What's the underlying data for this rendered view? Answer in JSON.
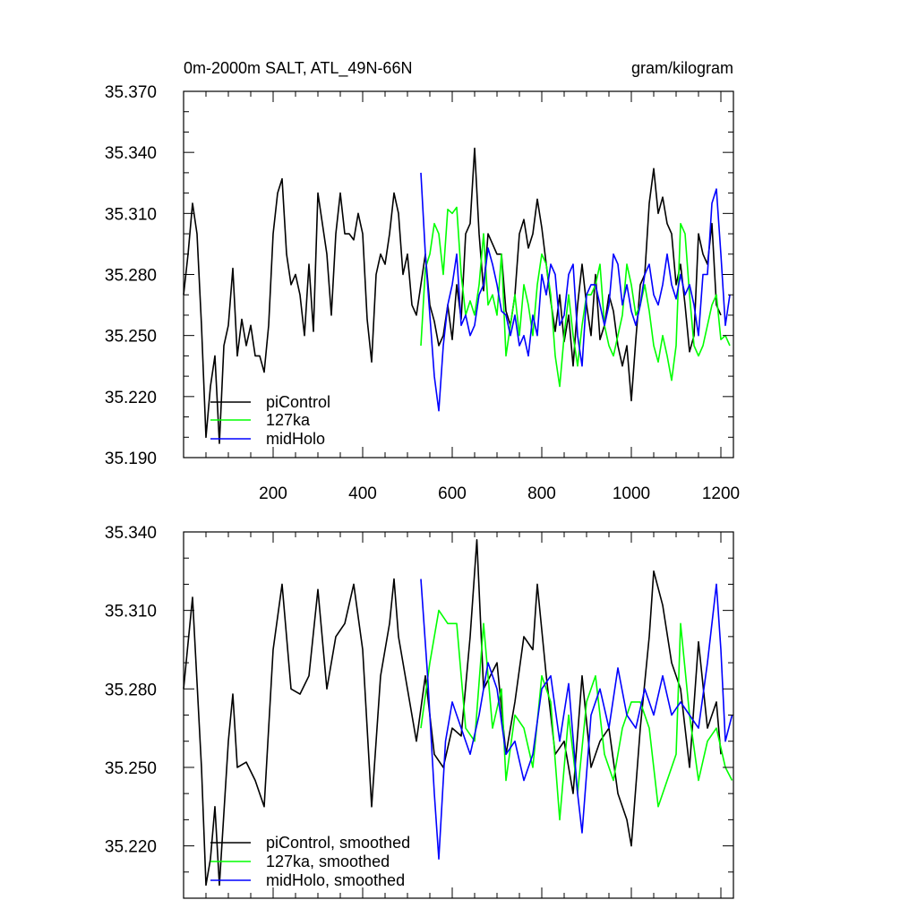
{
  "chart_data": [
    {
      "type": "line",
      "title_left": "0m-2000m SALT, ATL_49N-66N",
      "title_right": "gram/kilogram",
      "xlim": [
        0,
        1228
      ],
      "ylim": [
        35.19,
        35.37
      ],
      "xticks": [
        200,
        400,
        600,
        800,
        1000,
        1200
      ],
      "xtick_labels": [
        "200",
        "400",
        "600",
        "800",
        "1000",
        "1200"
      ],
      "yticks": [
        35.19,
        35.22,
        35.25,
        35.28,
        35.31,
        35.34,
        35.37
      ],
      "ytick_labels": [
        "35.190",
        "35.220",
        "35.250",
        "35.280",
        "35.310",
        "35.340",
        "35.370"
      ],
      "legend_position": "bottom-left",
      "series": [
        {
          "name": "piControl",
          "color": "#000000",
          "x_start": 0,
          "x_step": 10,
          "values": [
            35.27,
            35.29,
            35.315,
            35.3,
            35.255,
            35.2,
            35.225,
            35.24,
            35.197,
            35.245,
            35.255,
            35.283,
            35.24,
            35.258,
            35.245,
            35.255,
            35.24,
            35.24,
            35.232,
            35.255,
            35.3,
            35.32,
            35.327,
            35.29,
            35.275,
            35.28,
            35.27,
            35.25,
            35.285,
            35.252,
            35.32,
            35.305,
            35.29,
            35.26,
            35.3,
            35.32,
            35.3,
            35.3,
            35.297,
            35.31,
            35.3,
            35.258,
            35.237,
            35.28,
            35.29,
            35.285,
            35.3,
            35.32,
            35.31,
            35.28,
            35.29,
            35.265,
            35.26,
            35.275,
            35.29,
            35.265,
            35.257,
            35.245,
            35.25,
            35.265,
            35.248,
            35.275,
            35.258,
            35.3,
            35.305,
            35.342,
            35.3,
            35.272,
            35.3,
            35.295,
            35.29,
            35.29,
            35.262,
            35.255,
            35.27,
            35.3,
            35.307,
            35.293,
            35.3,
            35.317,
            35.303,
            35.285,
            35.267,
            35.252,
            35.27,
            35.247,
            35.26,
            35.235,
            35.265,
            35.285,
            35.265,
            35.25,
            35.28,
            35.248,
            35.255,
            35.27,
            35.262,
            35.245,
            35.235,
            35.245,
            35.218,
            35.248,
            35.275,
            35.28,
            35.315,
            35.332,
            35.31,
            35.318,
            35.305,
            35.3,
            35.275,
            35.285,
            35.265,
            35.242,
            35.25,
            35.3,
            35.29,
            35.285,
            35.305,
            35.265,
            35.26
          ]
        },
        {
          "name": "127ka",
          "color": "#00ff00",
          "x_start": 530,
          "x_step": 10,
          "values": [
            35.245,
            35.283,
            35.29,
            35.305,
            35.3,
            35.28,
            35.312,
            35.31,
            35.313,
            35.28,
            35.26,
            35.267,
            35.26,
            35.275,
            35.3,
            35.265,
            35.27,
            35.26,
            35.29,
            35.24,
            35.255,
            35.27,
            35.25,
            35.275,
            35.265,
            35.25,
            35.275,
            35.29,
            35.285,
            35.27,
            35.24,
            35.225,
            35.25,
            35.27,
            35.25,
            35.235,
            35.255,
            35.27,
            35.27,
            35.275,
            35.285,
            35.255,
            35.245,
            35.24,
            35.25,
            35.26,
            35.285,
            35.275,
            35.26,
            35.265,
            35.275,
            35.262,
            35.245,
            35.237,
            35.25,
            35.24,
            35.228,
            35.245,
            35.305,
            35.3,
            35.27,
            35.245,
            35.24,
            35.245,
            35.255,
            35.265,
            35.27,
            35.248,
            35.25,
            35.245
          ]
        },
        {
          "name": "midHolo",
          "color": "#0000ff",
          "x_start": 530,
          "x_step": 10,
          "values": [
            35.33,
            35.29,
            35.26,
            35.23,
            35.213,
            35.245,
            35.265,
            35.275,
            35.29,
            35.255,
            35.26,
            35.25,
            35.255,
            35.27,
            35.275,
            35.293,
            35.285,
            35.275,
            35.262,
            35.26,
            35.25,
            35.26,
            35.245,
            35.25,
            35.24,
            35.26,
            35.25,
            35.28,
            35.27,
            35.285,
            35.28,
            35.255,
            35.26,
            35.28,
            35.285,
            35.25,
            35.235,
            35.27,
            35.275,
            35.275,
            35.265,
            35.255,
            35.265,
            35.29,
            35.285,
            35.265,
            35.275,
            35.262,
            35.255,
            35.265,
            35.28,
            35.285,
            35.27,
            35.265,
            35.275,
            35.29,
            35.275,
            35.268,
            35.28,
            35.27,
            35.275,
            35.265,
            35.25,
            35.28,
            35.28,
            35.315,
            35.322,
            35.29,
            35.255,
            35.27
          ]
        }
      ]
    },
    {
      "type": "line",
      "xlim": [
        0,
        1228
      ],
      "ylim": [
        35.2,
        35.34
      ],
      "xticks": [
        200,
        400,
        600,
        800,
        1000,
        1200
      ],
      "yticks": [
        35.22,
        35.25,
        35.28,
        35.31,
        35.34
      ],
      "ytick_labels": [
        "35.220",
        "35.250",
        "35.280",
        "35.310",
        "35.340"
      ],
      "legend_position": "bottom-left",
      "series": [
        {
          "name": "piControl, smoothed",
          "color": "#000000",
          "points": [
            [
              0,
              35.28
            ],
            [
              20,
              35.315
            ],
            [
              40,
              35.25
            ],
            [
              50,
              35.205
            ],
            [
              60,
              35.215
            ],
            [
              70,
              35.235
            ],
            [
              80,
              35.205
            ],
            [
              100,
              35.26
            ],
            [
              110,
              35.278
            ],
            [
              120,
              35.25
            ],
            [
              140,
              35.252
            ],
            [
              160,
              35.245
            ],
            [
              180,
              35.235
            ],
            [
              200,
              35.295
            ],
            [
              220,
              35.32
            ],
            [
              240,
              35.28
            ],
            [
              260,
              35.278
            ],
            [
              280,
              35.285
            ],
            [
              300,
              35.318
            ],
            [
              320,
              35.28
            ],
            [
              340,
              35.3
            ],
            [
              360,
              35.305
            ],
            [
              380,
              35.32
            ],
            [
              400,
              35.295
            ],
            [
              420,
              35.235
            ],
            [
              440,
              35.285
            ],
            [
              460,
              35.305
            ],
            [
              470,
              35.322
            ],
            [
              480,
              35.3
            ],
            [
              500,
              35.28
            ],
            [
              520,
              35.26
            ],
            [
              540,
              35.285
            ],
            [
              560,
              35.255
            ],
            [
              580,
              35.25
            ],
            [
              600,
              35.265
            ],
            [
              620,
              35.262
            ],
            [
              640,
              35.3
            ],
            [
              655,
              35.337
            ],
            [
              670,
              35.28
            ],
            [
              700,
              35.29
            ],
            [
              720,
              35.255
            ],
            [
              740,
              35.275
            ],
            [
              760,
              35.3
            ],
            [
              780,
              35.295
            ],
            [
              790,
              35.32
            ],
            [
              810,
              35.285
            ],
            [
              830,
              35.255
            ],
            [
              850,
              35.26
            ],
            [
              870,
              35.24
            ],
            [
              890,
              35.285
            ],
            [
              910,
              35.25
            ],
            [
              930,
              35.26
            ],
            [
              950,
              35.265
            ],
            [
              970,
              35.24
            ],
            [
              990,
              35.23
            ],
            [
              1000,
              35.22
            ],
            [
              1020,
              35.265
            ],
            [
              1040,
              35.3
            ],
            [
              1050,
              35.325
            ],
            [
              1070,
              35.312
            ],
            [
              1090,
              35.29
            ],
            [
              1110,
              35.28
            ],
            [
              1130,
              35.25
            ],
            [
              1150,
              35.298
            ],
            [
              1170,
              35.265
            ],
            [
              1190,
              35.275
            ],
            [
              1200,
              35.255
            ]
          ]
        },
        {
          "name": "127ka, smoothed",
          "color": "#00ff00",
          "points": [
            [
              530,
              35.265
            ],
            [
              550,
              35.29
            ],
            [
              570,
              35.31
            ],
            [
              590,
              35.305
            ],
            [
              610,
              35.305
            ],
            [
              630,
              35.265
            ],
            [
              650,
              35.26
            ],
            [
              670,
              35.305
            ],
            [
              690,
              35.265
            ],
            [
              710,
              35.28
            ],
            [
              720,
              35.245
            ],
            [
              740,
              35.27
            ],
            [
              760,
              35.265
            ],
            [
              780,
              35.25
            ],
            [
              800,
              35.285
            ],
            [
              820,
              35.275
            ],
            [
              840,
              35.23
            ],
            [
              860,
              35.27
            ],
            [
              880,
              35.24
            ],
            [
              900,
              35.275
            ],
            [
              920,
              35.285
            ],
            [
              940,
              35.255
            ],
            [
              960,
              35.245
            ],
            [
              980,
              35.265
            ],
            [
              1000,
              35.275
            ],
            [
              1020,
              35.275
            ],
            [
              1040,
              35.265
            ],
            [
              1060,
              35.235
            ],
            [
              1080,
              35.245
            ],
            [
              1100,
              35.255
            ],
            [
              1110,
              35.305
            ],
            [
              1130,
              35.27
            ],
            [
              1150,
              35.245
            ],
            [
              1170,
              35.26
            ],
            [
              1190,
              35.265
            ],
            [
              1210,
              35.25
            ],
            [
              1225,
              35.245
            ]
          ]
        },
        {
          "name": "midHolo, smoothed",
          "color": "#0000ff",
          "points": [
            [
              530,
              35.322
            ],
            [
              545,
              35.285
            ],
            [
              560,
              35.24
            ],
            [
              570,
              35.215
            ],
            [
              585,
              35.26
            ],
            [
              600,
              35.275
            ],
            [
              620,
              35.265
            ],
            [
              640,
              35.255
            ],
            [
              660,
              35.27
            ],
            [
              680,
              35.29
            ],
            [
              700,
              35.28
            ],
            [
              720,
              35.255
            ],
            [
              740,
              35.26
            ],
            [
              760,
              35.245
            ],
            [
              780,
              35.255
            ],
            [
              800,
              35.28
            ],
            [
              820,
              35.285
            ],
            [
              840,
              35.26
            ],
            [
              860,
              35.282
            ],
            [
              880,
              35.24
            ],
            [
              890,
              35.225
            ],
            [
              910,
              35.27
            ],
            [
              930,
              35.28
            ],
            [
              950,
              35.265
            ],
            [
              970,
              35.288
            ],
            [
              990,
              35.27
            ],
            [
              1010,
              35.265
            ],
            [
              1030,
              35.28
            ],
            [
              1050,
              35.27
            ],
            [
              1070,
              35.285
            ],
            [
              1090,
              35.27
            ],
            [
              1110,
              35.275
            ],
            [
              1130,
              35.27
            ],
            [
              1150,
              35.265
            ],
            [
              1170,
              35.29
            ],
            [
              1190,
              35.32
            ],
            [
              1200,
              35.295
            ],
            [
              1210,
              35.26
            ],
            [
              1225,
              35.27
            ]
          ]
        }
      ]
    }
  ]
}
